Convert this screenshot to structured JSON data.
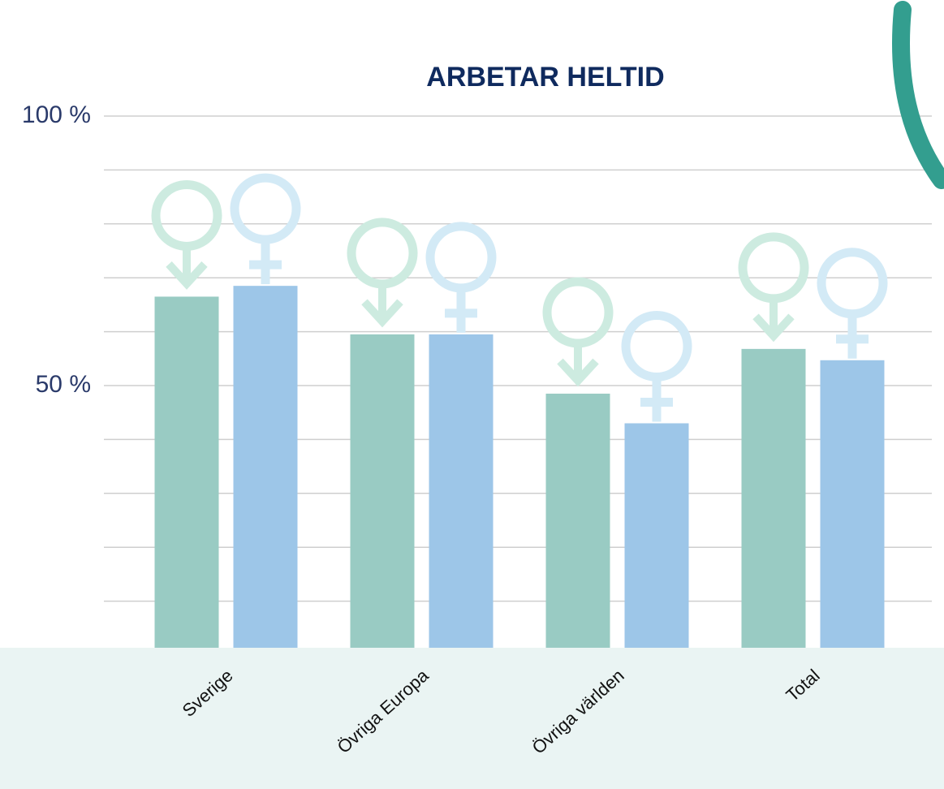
{
  "chart_data": {
    "type": "bar",
    "title": "ARBETAR HELTID",
    "categories": [
      "Sverige",
      "Övriga Europa",
      "Övriga världen",
      "Total"
    ],
    "series": [
      {
        "color": "#99cbc3",
        "symbol_color": "#cdebe0",
        "values": [
          66.5,
          59.5,
          48.5,
          56.8
        ]
      },
      {
        "color": "#9dc6e8",
        "symbol_color": "#d3eaf6",
        "values": [
          68.5,
          59.5,
          43,
          54.7
        ]
      }
    ],
    "ylim": [
      0,
      100
    ],
    "yticks": [
      {
        "value": 50,
        "label": "50 %"
      },
      {
        "value": 100,
        "label": "100 %"
      }
    ],
    "grid_ticks": [
      10,
      20,
      30,
      40,
      50,
      60,
      70,
      80,
      90,
      100
    ],
    "grid": true
  }
}
